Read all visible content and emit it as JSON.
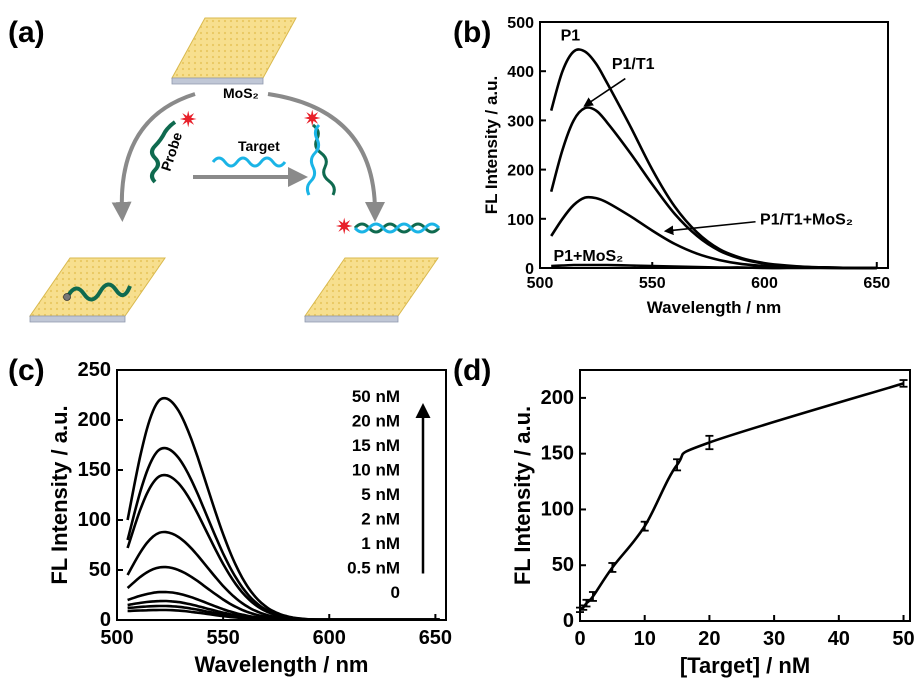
{
  "panels": {
    "a": {
      "label": "(a)",
      "mos2_label": "MoS₂",
      "probe_label": "Probe",
      "target_label": "Target",
      "colors": {
        "sheet": "#f7df8e",
        "dna_probe": "#0f6a4f",
        "dna_target": "#1ab4e6",
        "arrow": "#8a8a8a",
        "fluor": "#e8202a"
      }
    },
    "b": {
      "label": "(b)"
    },
    "c": {
      "label": "(c)"
    },
    "d": {
      "label": "(d)"
    }
  },
  "chart_data": [
    {
      "panel": "b",
      "type": "line",
      "xlabel": "Wavelength / nm",
      "ylabel": "FL Intensity / a.u.",
      "xlim": [
        500,
        655
      ],
      "ylim": [
        0,
        500
      ],
      "xticks": [
        500,
        550,
        600,
        650
      ],
      "yticks": [
        0,
        100,
        200,
        300,
        400,
        500
      ],
      "series": [
        {
          "name": "P1",
          "x": [
            505,
            510,
            515,
            520,
            525,
            530,
            540,
            550,
            560,
            570,
            580,
            590,
            600,
            610,
            620,
            630,
            640,
            650
          ],
          "values": [
            320,
            400,
            440,
            440,
            415,
            375,
            290,
            200,
            125,
            72,
            38,
            20,
            10,
            5,
            2,
            1,
            0,
            0
          ]
        },
        {
          "name": "P1/T1",
          "x": [
            505,
            510,
            515,
            520,
            525,
            530,
            540,
            550,
            560,
            570,
            580,
            590,
            600,
            610,
            620,
            630,
            640,
            650
          ],
          "values": [
            155,
            240,
            300,
            325,
            320,
            295,
            235,
            170,
            110,
            65,
            35,
            18,
            9,
            4,
            2,
            1,
            0,
            0
          ]
        },
        {
          "name": "P1/T1+MoS₂",
          "x": [
            505,
            510,
            515,
            520,
            525,
            530,
            540,
            550,
            560,
            570,
            580,
            590,
            600,
            610,
            620,
            630,
            640,
            650
          ],
          "values": [
            65,
            100,
            128,
            143,
            142,
            133,
            106,
            76,
            49,
            29,
            16,
            8,
            4,
            2,
            1,
            0,
            0,
            0
          ]
        },
        {
          "name": "P1+MoS₂",
          "x": [
            505,
            510,
            515,
            520,
            525,
            530,
            540,
            550,
            560,
            570,
            580,
            590,
            600,
            610,
            620,
            630,
            640,
            650
          ],
          "values": [
            4,
            5,
            6,
            6,
            6,
            6,
            5,
            4,
            3,
            2,
            1,
            1,
            0,
            0,
            0,
            0,
            0,
            0
          ]
        }
      ],
      "annotations": [
        "P1",
        "P1/T1",
        "P1/T1+MoS₂",
        "P1+MoS₂"
      ]
    },
    {
      "panel": "c",
      "type": "line",
      "xlabel": "Wavelength / nm",
      "ylabel": "FL Intensity / a.u.",
      "xlim": [
        500,
        655
      ],
      "ylim": [
        0,
        250
      ],
      "xticks": [
        500,
        550,
        600,
        650
      ],
      "yticks": [
        0,
        50,
        100,
        150,
        200,
        250
      ],
      "legend": [
        "50 nM",
        "20 nM",
        "15 nM",
        "10 nM",
        "5 nM",
        "2 nM",
        "1 nM",
        "0.5 nM",
        "0"
      ],
      "peak_wavelength": 522,
      "start_wavelength": 505,
      "series": [
        {
          "name": "50 nM",
          "start": 100,
          "peak": 222
        },
        {
          "name": "20 nM",
          "start": 80,
          "peak": 172
        },
        {
          "name": "15 nM",
          "start": 72,
          "peak": 145
        },
        {
          "name": "10 nM",
          "start": 45,
          "peak": 88
        },
        {
          "name": "5 nM",
          "start": 32,
          "peak": 53
        },
        {
          "name": "2 nM",
          "start": 20,
          "peak": 28
        },
        {
          "name": "1 nM",
          "start": 15,
          "peak": 19
        },
        {
          "name": "0.5 nM",
          "start": 12,
          "peak": 14
        },
        {
          "name": "0",
          "start": 9,
          "peak": 10
        }
      ]
    },
    {
      "panel": "d",
      "type": "line",
      "xlabel": "[Target] / nM",
      "ylabel": "FL Intensity / a.u.",
      "xlim": [
        0,
        51
      ],
      "ylim": [
        0,
        225
      ],
      "xticks": [
        0,
        10,
        20,
        30,
        40,
        50
      ],
      "yticks": [
        0,
        50,
        100,
        150,
        200
      ],
      "x": [
        0,
        0.5,
        1,
        2,
        5,
        10,
        15,
        20,
        50
      ],
      "values": [
        10,
        12,
        16,
        22,
        48,
        85,
        140,
        160,
        213
      ],
      "errors": [
        2,
        2,
        3,
        4,
        4,
        4,
        5,
        6,
        3
      ]
    }
  ]
}
